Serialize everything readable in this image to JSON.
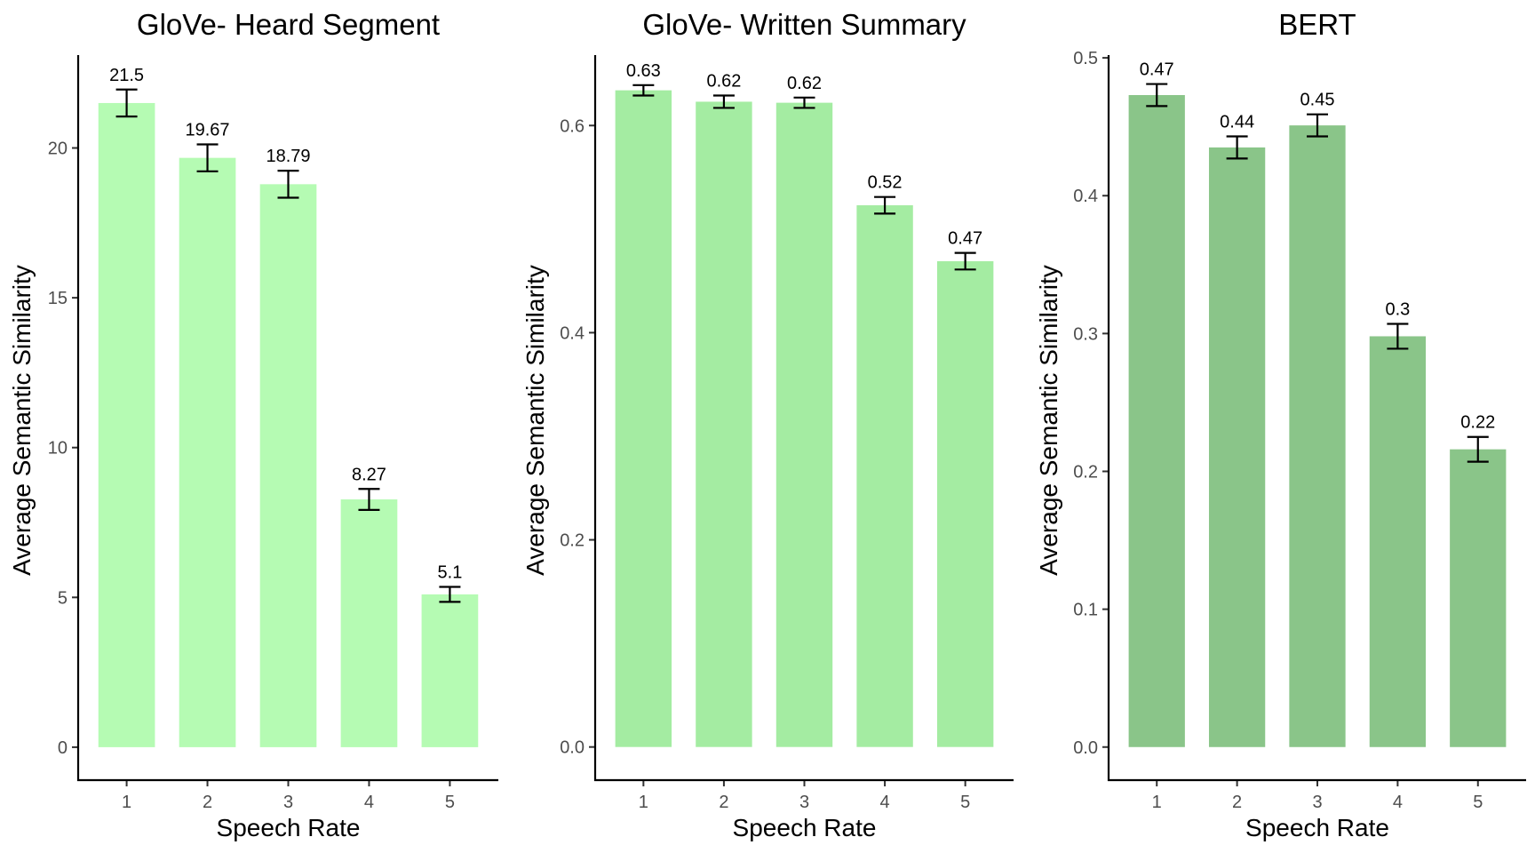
{
  "chart_data": [
    {
      "type": "bar",
      "title": "GloVe- Heard Segment",
      "xlabel": "Speech Rate",
      "ylabel": "Average Semantic Similarity",
      "categories": [
        "1",
        "2",
        "3",
        "4",
        "5"
      ],
      "values": [
        21.5,
        19.67,
        18.79,
        8.27,
        5.1
      ],
      "value_labels": [
        "21.5",
        "19.67",
        "18.79",
        "8.27",
        "5.1"
      ],
      "error_bars": [
        [
          21.05,
          21.95
        ],
        [
          19.22,
          20.12
        ],
        [
          18.34,
          19.24
        ],
        [
          7.92,
          8.62
        ],
        [
          4.85,
          5.35
        ]
      ],
      "ylim": [
        -1.1,
        23.1
      ],
      "yticks": [
        0,
        5,
        10,
        15,
        20
      ],
      "ytick_labels": [
        "0",
        "5",
        "10",
        "15",
        "20"
      ],
      "bar_color": "#b5fbb3",
      "grid": false
    },
    {
      "type": "bar",
      "title": "GloVe- Written Summary",
      "xlabel": "Speech Rate",
      "ylabel": "Average Semantic Similarity",
      "categories": [
        "1",
        "2",
        "3",
        "4",
        "5"
      ],
      "values": [
        0.634,
        0.623,
        0.622,
        0.523,
        0.469
      ],
      "value_labels": [
        "0.63",
        "0.62",
        "0.62",
        "0.52",
        "0.47"
      ],
      "error_bars": [
        [
          0.629,
          0.639
        ],
        [
          0.617,
          0.629
        ],
        [
          0.617,
          0.627
        ],
        [
          0.515,
          0.531
        ],
        [
          0.461,
          0.477
        ]
      ],
      "ylim": [
        -0.032,
        0.668
      ],
      "yticks": [
        0,
        0.2,
        0.4,
        0.6
      ],
      "ytick_labels": [
        "0.0",
        "0.2",
        "0.4",
        "0.6"
      ],
      "bar_color": "#a4eca2",
      "grid": false
    },
    {
      "type": "bar",
      "title": "BERT",
      "xlabel": "Speech Rate",
      "ylabel": "Average Semantic Similarity",
      "categories": [
        "1",
        "2",
        "3",
        "4",
        "5"
      ],
      "values": [
        0.473,
        0.435,
        0.451,
        0.298,
        0.216
      ],
      "value_labels": [
        "0.47",
        "0.44",
        "0.45",
        "0.3",
        "0.22"
      ],
      "error_bars": [
        [
          0.465,
          0.481
        ],
        [
          0.427,
          0.443
        ],
        [
          0.443,
          0.459
        ],
        [
          0.289,
          0.307
        ],
        [
          0.207,
          0.225
        ]
      ],
      "ylim": [
        -0.024,
        0.502
      ],
      "yticks": [
        0,
        0.1,
        0.2,
        0.3,
        0.4,
        0.5
      ],
      "ytick_labels": [
        "0.0",
        "0.1",
        "0.2",
        "0.3",
        "0.4",
        "0.5"
      ],
      "bar_color": "#8ac589",
      "grid": false
    }
  ]
}
